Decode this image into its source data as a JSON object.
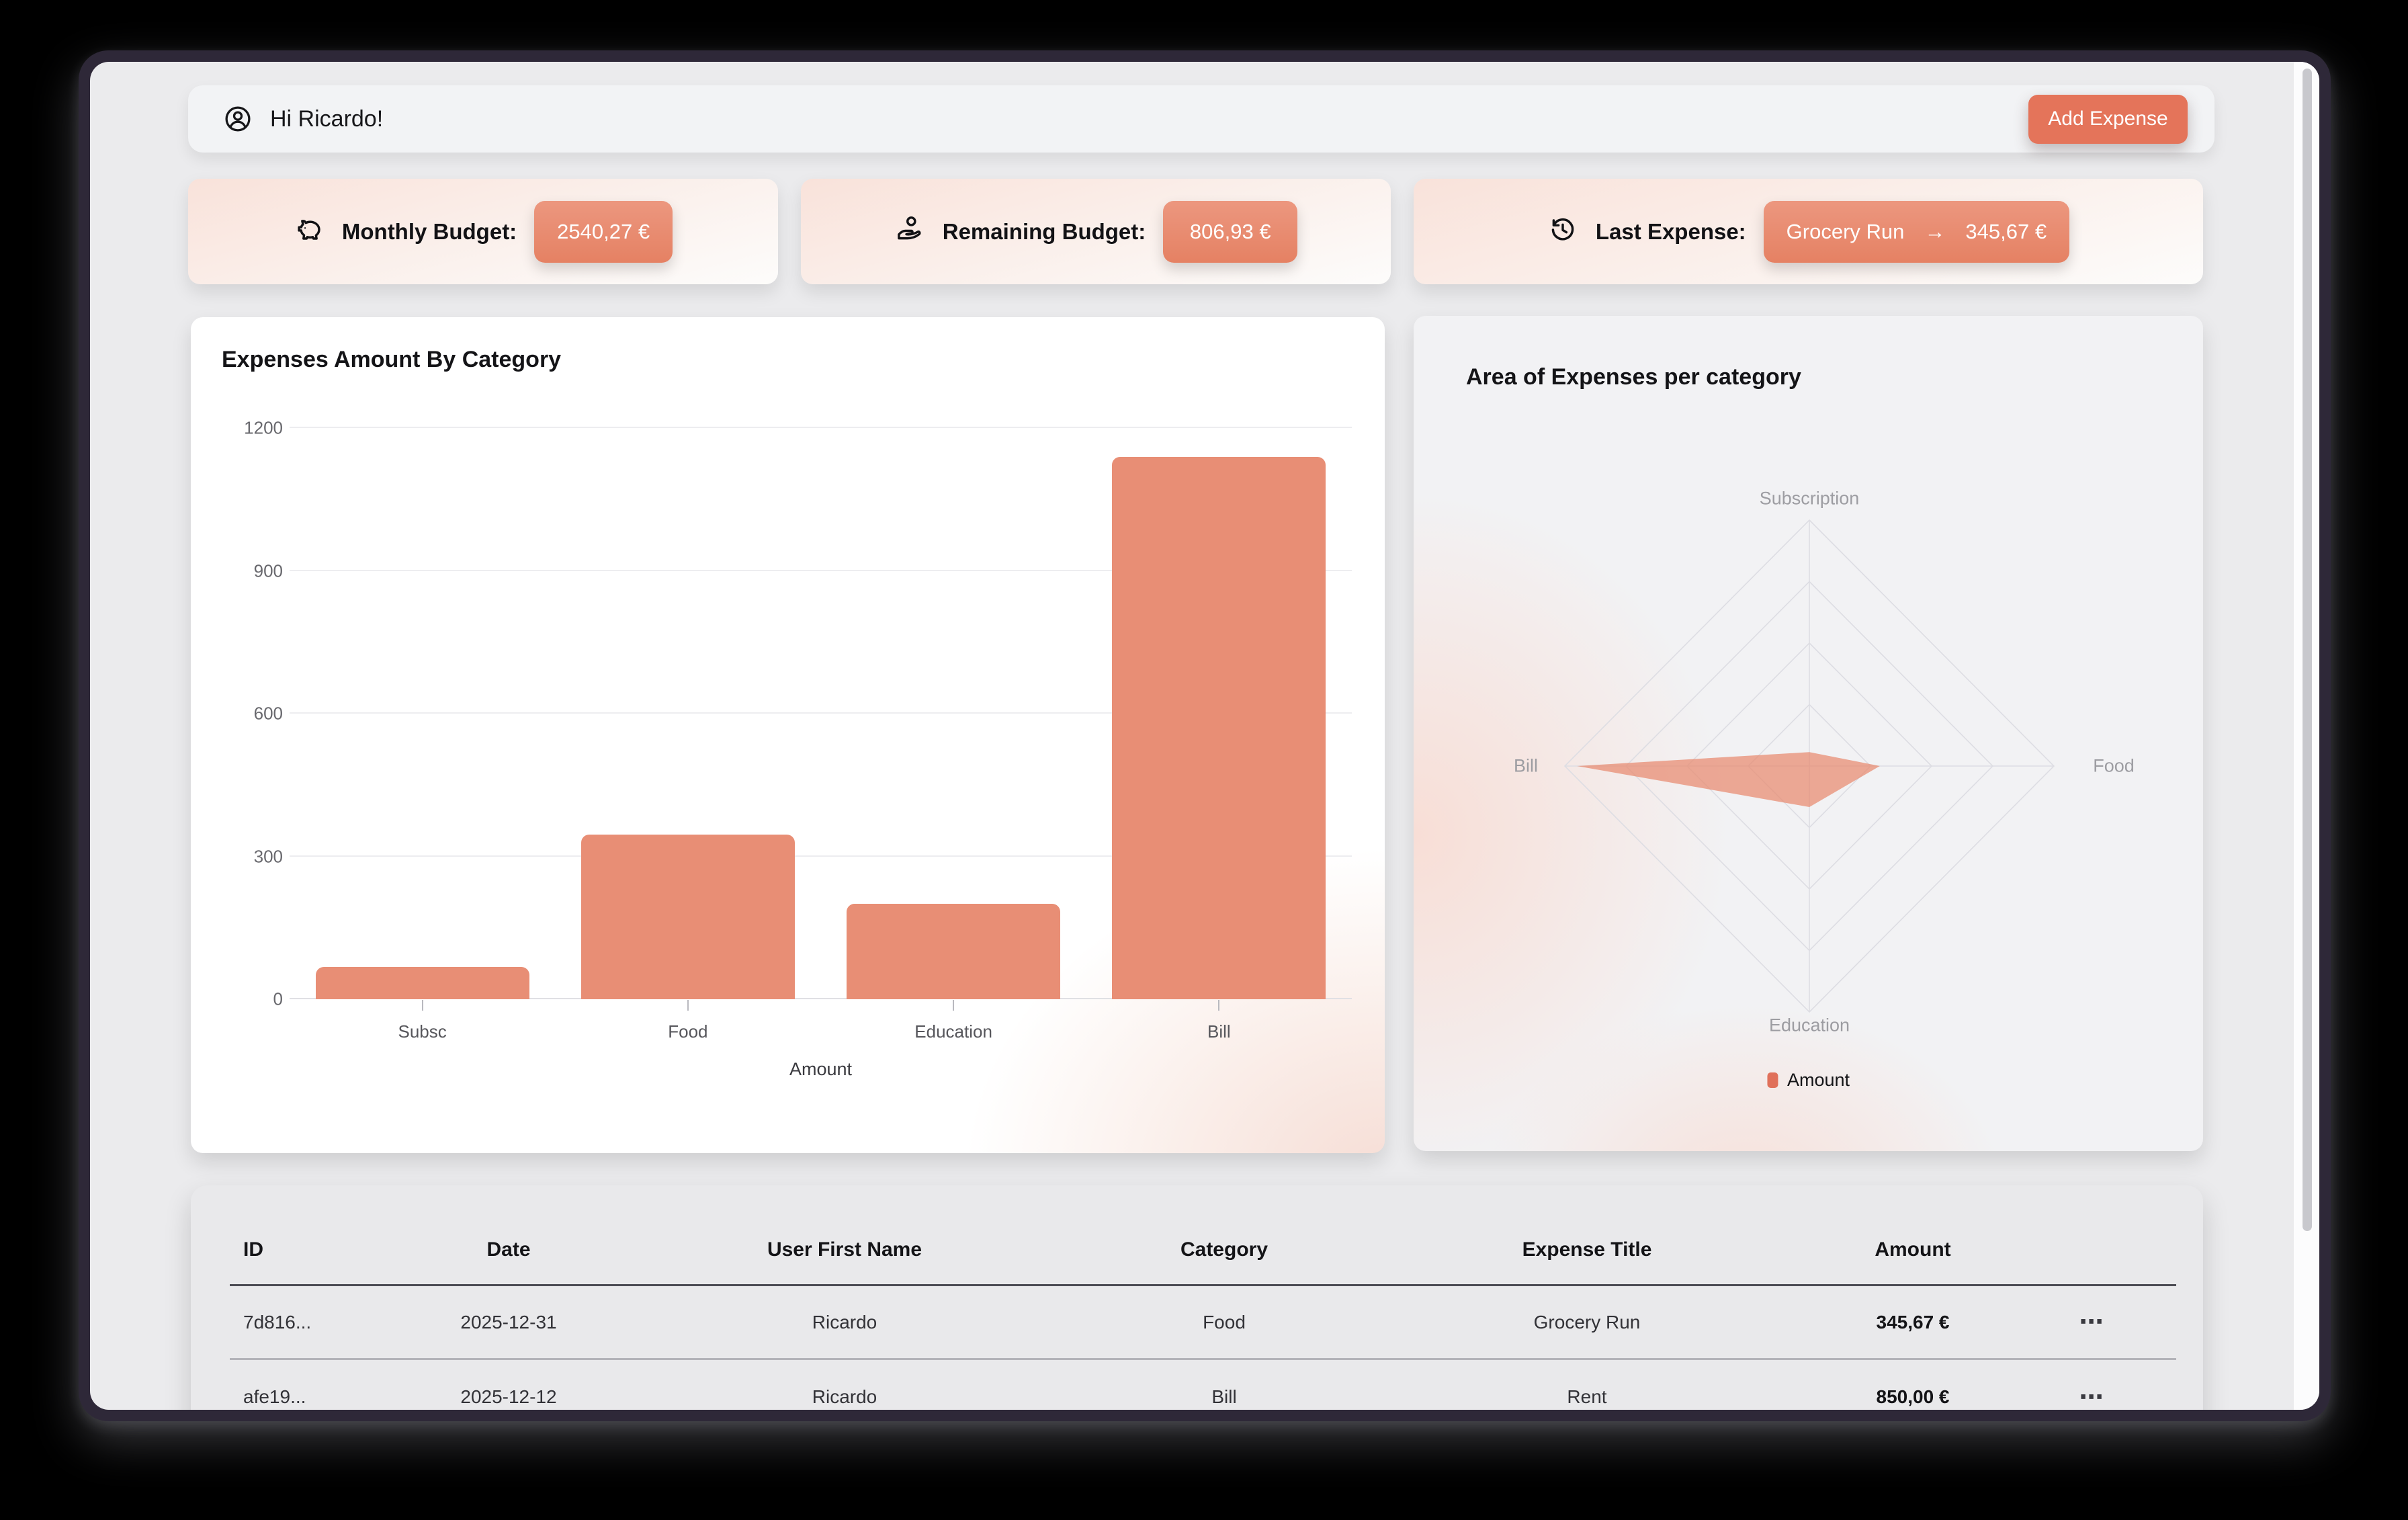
{
  "header": {
    "greeting": "Hi Ricardo!",
    "add_expense_label": "Add Expense"
  },
  "stats": [
    {
      "icon": "piggy-bank-icon",
      "label": "Monthly Budget:",
      "value": "2540,27 €"
    },
    {
      "icon": "hand-coin-icon",
      "label": "Remaining Budget:",
      "value": "806,93 €"
    },
    {
      "icon": "history-clock-icon",
      "label": "Last Expense:",
      "value_title": "Grocery Run",
      "value_arrow": "→",
      "value_amount": "345,67 €"
    }
  ],
  "chart_data": [
    {
      "type": "bar",
      "title": "Expenses Amount By Category",
      "categories": [
        "Subsc",
        "Food",
        "Education",
        "Bill"
      ],
      "values": [
        68,
        345.67,
        200,
        1140
      ],
      "xlabel": "Amount",
      "ylabel": "",
      "ylim": [
        0,
        1200
      ],
      "yticks": [
        0,
        300,
        600,
        900,
        1200
      ],
      "grid": true,
      "legend": false,
      "bar_color": "#e88e75"
    },
    {
      "type": "area",
      "variant": "radar",
      "title": "Area of Expenses per category",
      "axes": [
        "Subscription",
        "Food",
        "Education",
        "Bill"
      ],
      "values": [
        68,
        345.67,
        200,
        1140
      ],
      "max": 1200,
      "rings": 4,
      "fill_color": "#e8896f",
      "legend": [
        {
          "label": "Amount",
          "color": "#e0705a"
        }
      ],
      "legend_position": "bottom"
    }
  ],
  "table": {
    "columns": [
      "ID",
      "Date",
      "User First Name",
      "Category",
      "Expense Title",
      "Amount"
    ],
    "rows": [
      {
        "id": "7d816...",
        "date": "2025-12-31",
        "user_first_name": "Ricardo",
        "category": "Food",
        "expense_title": "Grocery Run",
        "amount": "345,67 €",
        "menu": "⋯"
      },
      {
        "id": "afe19...",
        "date": "2025-12-12",
        "user_first_name": "Ricardo",
        "category": "Bill",
        "expense_title": "Rent",
        "amount": "850,00 €",
        "menu": "⋯"
      }
    ]
  },
  "colors": {
    "accent": "#e4745a",
    "pill": "#e88b72",
    "bar": "#e88e75",
    "radar_fill": "#e8896f",
    "window_frame": "#2e2838"
  }
}
